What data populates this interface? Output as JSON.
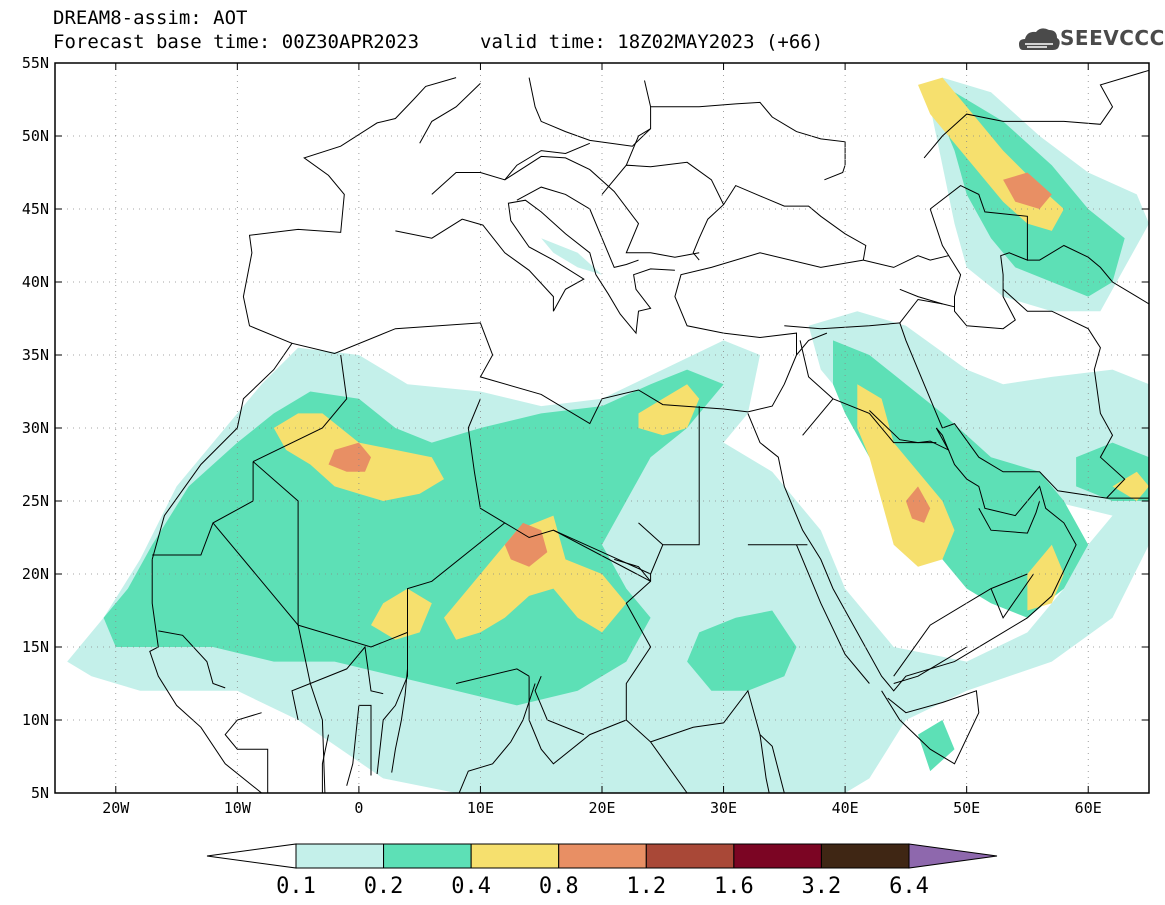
{
  "header": {
    "line1": "DREAM8-assim: AOT",
    "line2": "Forecast base time: 00Z30APR2023",
    "valid": "valid time: 18Z02MAY2023 (+66)"
  },
  "logo": {
    "text": "SEEVCCC",
    "icon": "cloud-logo-icon"
  },
  "map": {
    "lon_range": [
      -25,
      65
    ],
    "lat_range": [
      5,
      55
    ],
    "lat_ticks": [
      {
        "value": 55,
        "label": "55N"
      },
      {
        "value": 50,
        "label": "50N"
      },
      {
        "value": 45,
        "label": "45N"
      },
      {
        "value": 40,
        "label": "40N"
      },
      {
        "value": 35,
        "label": "35N"
      },
      {
        "value": 30,
        "label": "30N"
      },
      {
        "value": 25,
        "label": "25N"
      },
      {
        "value": 20,
        "label": "20N"
      },
      {
        "value": 15,
        "label": "15N"
      },
      {
        "value": 10,
        "label": "10N"
      },
      {
        "value": 5,
        "label": "5N"
      }
    ],
    "lon_ticks": [
      {
        "value": -20,
        "label": "20W"
      },
      {
        "value": -10,
        "label": "10W"
      },
      {
        "value": 0,
        "label": "0"
      },
      {
        "value": 10,
        "label": "10E"
      },
      {
        "value": 20,
        "label": "20E"
      },
      {
        "value": 30,
        "label": "30E"
      },
      {
        "value": 40,
        "label": "40E"
      },
      {
        "value": 50,
        "label": "50E"
      },
      {
        "value": 60,
        "label": "60E"
      }
    ],
    "grid": true,
    "variable": "AOT"
  },
  "colorbar": {
    "labels": [
      "0.1",
      "0.2",
      "0.4",
      "0.8",
      "1.2",
      "1.6",
      "3.2",
      "6.4"
    ],
    "colors": [
      "#ffffff",
      "#c4f0ea",
      "#5de0b6",
      "#f6e06e",
      "#e88f64",
      "#a94837",
      "#7b0523",
      "#3f2614",
      "#8e68ad"
    ]
  },
  "fields": {
    "levels": [
      {
        "level": "0.1",
        "color": "#c4f0ea",
        "polys": [
          [
            [
              -21,
              17
            ],
            [
              -18,
              21
            ],
            [
              -15,
              26
            ],
            [
              -12,
              29
            ],
            [
              -8,
              33
            ],
            [
              -5,
              35.5
            ],
            [
              0,
              35
            ],
            [
              4,
              33
            ],
            [
              10,
              32.5
            ],
            [
              15,
              31.5
            ],
            [
              20,
              32
            ],
            [
              25,
              34
            ],
            [
              30,
              36
            ],
            [
              33,
              35
            ],
            [
              32,
              31
            ],
            [
              30,
              29
            ],
            [
              34,
              27
            ],
            [
              38,
              23
            ],
            [
              40,
              19
            ],
            [
              44,
              15
            ],
            [
              50,
              14
            ],
            [
              55,
              16
            ],
            [
              58,
              19
            ],
            [
              60,
              22
            ],
            [
              63,
              25
            ],
            [
              65,
              27
            ],
            [
              65,
              22
            ],
            [
              62,
              17
            ],
            [
              57,
              14
            ],
            [
              50,
              12
            ],
            [
              45,
              10
            ],
            [
              42,
              6
            ],
            [
              40,
              5
            ],
            [
              20,
              5
            ],
            [
              8,
              5
            ],
            [
              2,
              6
            ],
            [
              -5,
              10
            ],
            [
              -10,
              12
            ],
            [
              -18,
              12
            ],
            [
              -22,
              13
            ],
            [
              -24,
              14
            ],
            [
              -23,
              15
            ]
          ],
          [
            [
              37,
              37
            ],
            [
              41,
              38
            ],
            [
              45,
              37
            ],
            [
              50,
              34
            ],
            [
              53,
              33
            ],
            [
              57,
              33.5
            ],
            [
              62,
              34
            ],
            [
              65,
              33
            ],
            [
              65,
              24
            ],
            [
              62,
              24
            ],
            [
              57,
              25
            ],
            [
              54,
              22
            ],
            [
              50,
              21
            ],
            [
              47,
              22
            ],
            [
              44,
              27
            ],
            [
              41,
              31
            ],
            [
              38,
              34
            ]
          ],
          [
            [
              48,
              54
            ],
            [
              52,
              53
            ],
            [
              56,
              50
            ],
            [
              60,
              47.5
            ],
            [
              64,
              46
            ],
            [
              65,
              44
            ],
            [
              63,
              41
            ],
            [
              61,
              38
            ],
            [
              57,
              38
            ],
            [
              53,
              39
            ],
            [
              50,
              41
            ],
            [
              49,
              44
            ],
            [
              48,
              48
            ],
            [
              47,
              52
            ]
          ],
          [
            [
              15,
              43
            ],
            [
              18,
              42
            ],
            [
              20,
              40.5
            ],
            [
              18,
              41
            ],
            [
              16,
              42
            ]
          ]
        ]
      },
      {
        "level": "0.2",
        "color": "#5de0b6",
        "polys": [
          [
            [
              -19,
              19
            ],
            [
              -17,
              22
            ],
            [
              -14,
              26
            ],
            [
              -10,
              29
            ],
            [
              -7,
              31
            ],
            [
              -4,
              32.5
            ],
            [
              0,
              32
            ],
            [
              3,
              30
            ],
            [
              6,
              29
            ],
            [
              10,
              30
            ],
            [
              15,
              31
            ],
            [
              20,
              31.5
            ],
            [
              24,
              33
            ],
            [
              27,
              34
            ],
            [
              30,
              33
            ],
            [
              27,
              30
            ],
            [
              24,
              28
            ],
            [
              22,
              25
            ],
            [
              20,
              22
            ],
            [
              22,
              19
            ],
            [
              24,
              17
            ],
            [
              22,
              14
            ],
            [
              18,
              12
            ],
            [
              13,
              11
            ],
            [
              8,
              12
            ],
            [
              3,
              13
            ],
            [
              -2,
              14
            ],
            [
              -7,
              14
            ],
            [
              -12,
              15
            ],
            [
              -16,
              15
            ],
            [
              -20,
              15
            ],
            [
              -21,
              17
            ]
          ],
          [
            [
              39,
              36
            ],
            [
              42,
              35
            ],
            [
              45,
              33
            ],
            [
              48,
              31
            ],
            [
              52,
              28
            ],
            [
              56,
              27
            ],
            [
              58,
              25
            ],
            [
              60,
              22
            ],
            [
              58,
              19
            ],
            [
              55,
              17
            ],
            [
              52,
              18
            ],
            [
              50,
              19
            ],
            [
              48,
              21
            ],
            [
              46,
              22
            ],
            [
              44,
              25
            ],
            [
              42,
              28
            ],
            [
              40,
              31
            ],
            [
              39,
              33
            ]
          ],
          [
            [
              49,
              53
            ],
            [
              53,
              51
            ],
            [
              57,
              48
            ],
            [
              60,
              45
            ],
            [
              63,
              43
            ],
            [
              62,
              40
            ],
            [
              60,
              39
            ],
            [
              57,
              40
            ],
            [
              54,
              41
            ],
            [
              52,
              43
            ],
            [
              50,
              46
            ],
            [
              49,
              49
            ],
            [
              48,
              51
            ]
          ],
          [
            [
              59,
              28
            ],
            [
              62,
              29
            ],
            [
              65,
              28
            ],
            [
              65,
              25
            ],
            [
              62,
              25
            ],
            [
              59,
              26
            ]
          ],
          [
            [
              28,
              16
            ],
            [
              31,
              17
            ],
            [
              34,
              17.5
            ],
            [
              36,
              15
            ],
            [
              35,
              13
            ],
            [
              32,
              12
            ],
            [
              29,
              12
            ],
            [
              27,
              14
            ]
          ],
          [
            [
              46,
              9
            ],
            [
              48,
              10
            ],
            [
              49,
              8
            ],
            [
              47,
              6.5
            ]
          ]
        ]
      },
      {
        "level": "0.4",
        "color": "#f6e06e",
        "polys": [
          [
            [
              -7,
              30
            ],
            [
              -5,
              31
            ],
            [
              -3,
              31
            ],
            [
              0,
              29
            ],
            [
              3,
              28.5
            ],
            [
              6,
              28
            ],
            [
              7,
              26.5
            ],
            [
              5,
              25.5
            ],
            [
              2,
              25
            ],
            [
              0,
              25.5
            ],
            [
              -2,
              26
            ],
            [
              -4,
              27.5
            ],
            [
              -6,
              28.5
            ]
          ],
          [
            [
              2,
              18
            ],
            [
              4,
              19
            ],
            [
              6,
              18
            ],
            [
              5,
              16
            ],
            [
              3,
              15.5
            ],
            [
              1,
              16.5
            ]
          ],
          [
            [
              7,
              17
            ],
            [
              9,
              19
            ],
            [
              11,
              21
            ],
            [
              13,
              23
            ],
            [
              16,
              24
            ],
            [
              17,
              21
            ],
            [
              20,
              20
            ],
            [
              22,
              18
            ],
            [
              20,
              16
            ],
            [
              18,
              17
            ],
            [
              16,
              19
            ],
            [
              14,
              18.5
            ],
            [
              12,
              17
            ],
            [
              10,
              16
            ],
            [
              8,
              15.5
            ]
          ],
          [
            [
              41,
              33
            ],
            [
              43,
              32
            ],
            [
              44,
              29
            ],
            [
              46,
              27
            ],
            [
              48,
              25
            ],
            [
              49,
              23
            ],
            [
              48,
              21
            ],
            [
              46,
              20.5
            ],
            [
              44,
              22
            ],
            [
              43,
              25
            ],
            [
              42,
              28
            ],
            [
              41,
              30
            ]
          ],
          [
            [
              23,
              31
            ],
            [
              25,
              32
            ],
            [
              27,
              33
            ],
            [
              28,
              32
            ],
            [
              27,
              30
            ],
            [
              25,
              29.5
            ],
            [
              23,
              30
            ]
          ],
          [
            [
              55,
              20
            ],
            [
              57,
              22
            ],
            [
              58,
              20
            ],
            [
              57,
              18
            ],
            [
              55,
              17.5
            ]
          ],
          [
            [
              46,
              53.5
            ],
            [
              48,
              54
            ],
            [
              50,
              52
            ],
            [
              53,
              49
            ],
            [
              56,
              46.5
            ],
            [
              58,
              45
            ],
            [
              57,
              43.5
            ],
            [
              55,
              44
            ],
            [
              53,
              45.5
            ],
            [
              51,
              47.5
            ],
            [
              49,
              49.5
            ],
            [
              47,
              51.5
            ]
          ],
          [
            [
              62,
              26
            ],
            [
              64,
              27
            ],
            [
              65,
              26
            ],
            [
              64,
              25
            ]
          ]
        ]
      },
      {
        "level": "0.8",
        "color": "#e88f64",
        "polys": [
          [
            [
              -2,
              28.5
            ],
            [
              0,
              29
            ],
            [
              1,
              28
            ],
            [
              0.5,
              27
            ],
            [
              -1,
              27
            ],
            [
              -2.5,
              27.5
            ]
          ],
          [
            [
              12,
              22
            ],
            [
              13.5,
              23.5
            ],
            [
              15,
              23
            ],
            [
              15.5,
              21.5
            ],
            [
              14,
              20.5
            ],
            [
              12.5,
              21
            ]
          ],
          [
            [
              45,
              25
            ],
            [
              46,
              26
            ],
            [
              47,
              24.5
            ],
            [
              46.5,
              23.5
            ],
            [
              45.5,
              23.8
            ]
          ],
          [
            [
              53,
              47
            ],
            [
              55,
              47.5
            ],
            [
              57,
              46
            ],
            [
              56,
              45
            ],
            [
              54,
              45.5
            ]
          ]
        ]
      }
    ]
  }
}
